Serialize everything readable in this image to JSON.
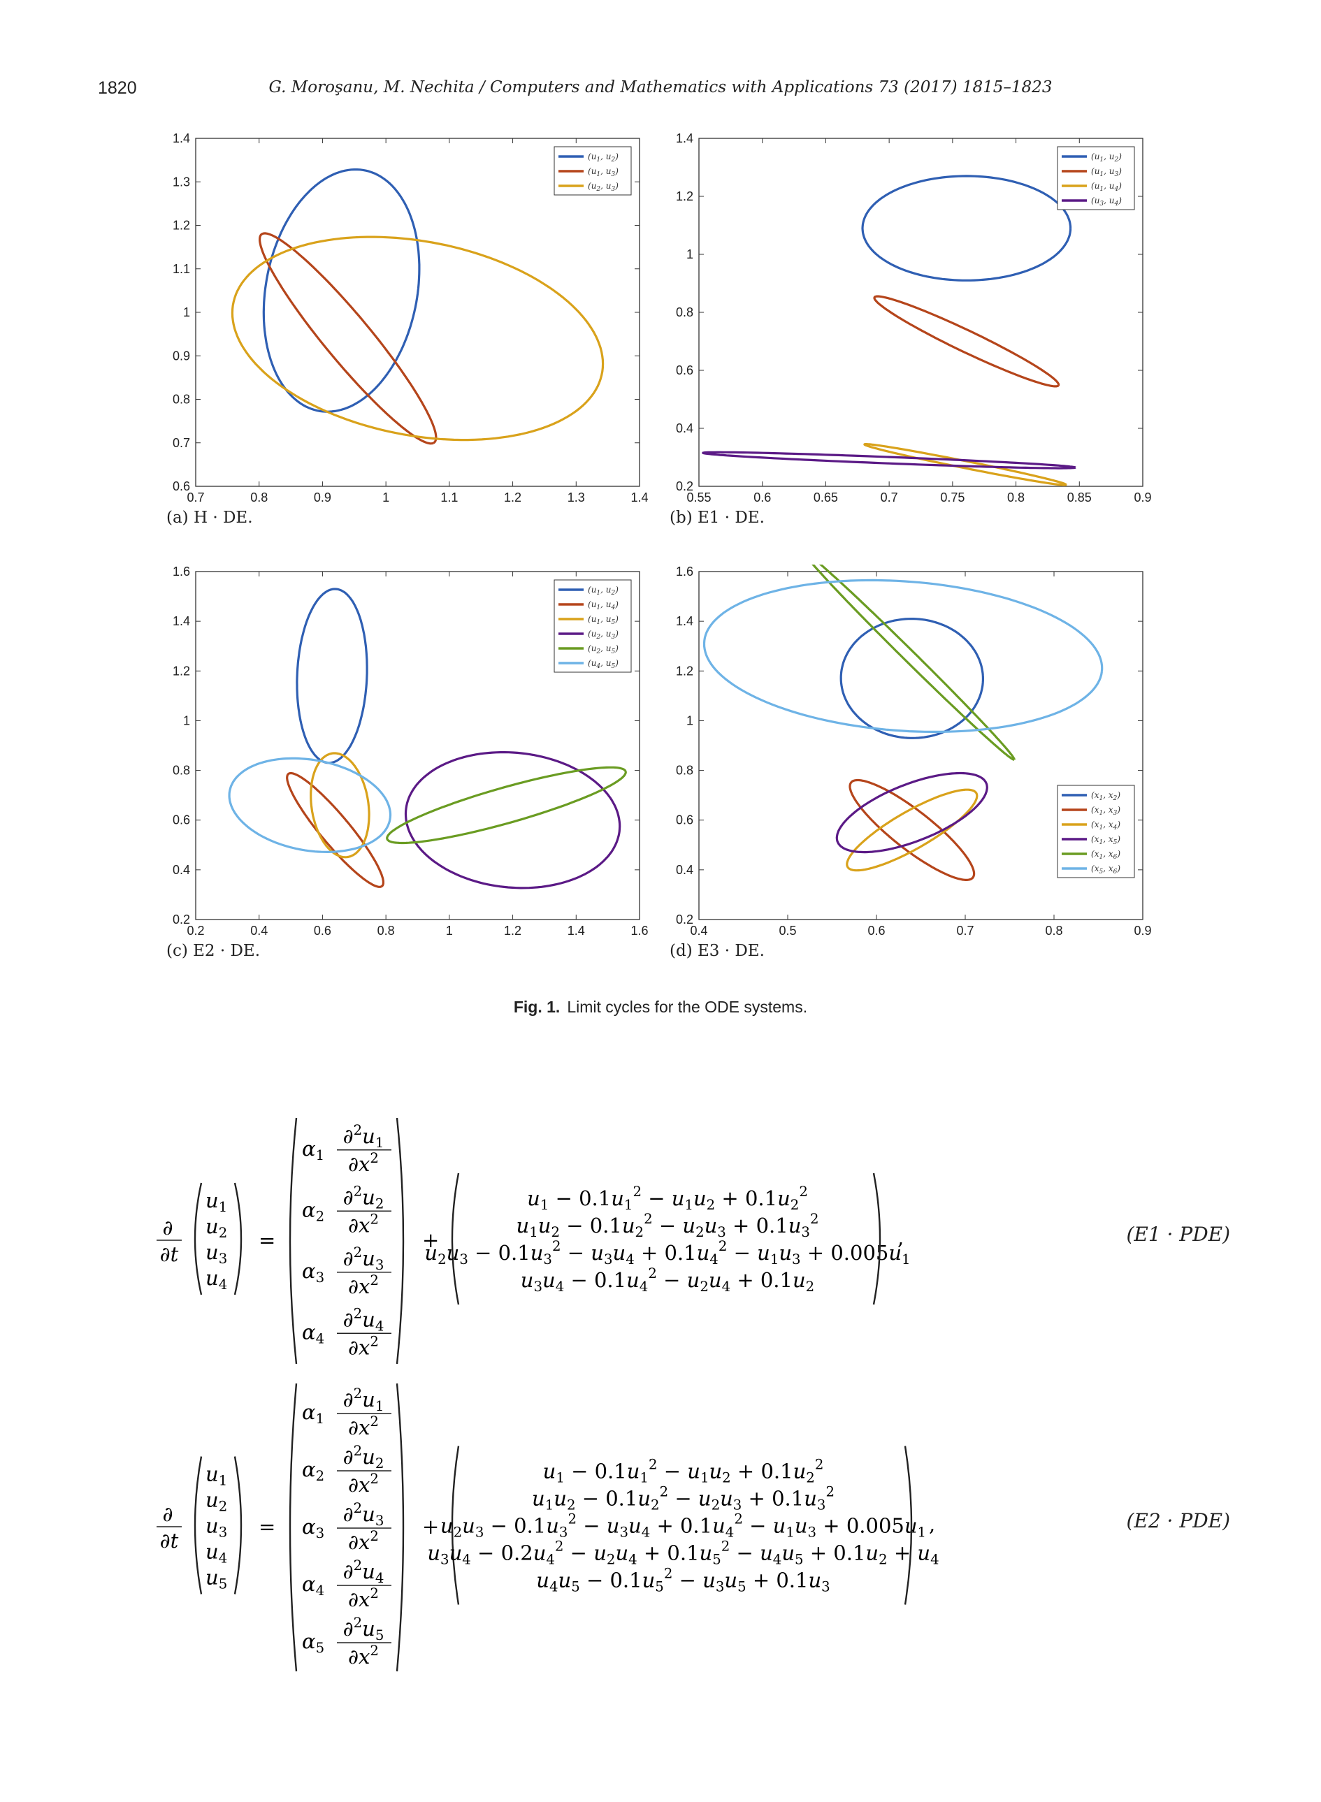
{
  "page": {
    "number": "1820",
    "running_head": "G. Moroşanu, M. Nechita / Computers and Mathematics with Applications 73 (2017) 1815–1823"
  },
  "colors": {
    "blue": "#2f5fb3",
    "red": "#b5451b",
    "yellow": "#d9a21b",
    "purple": "#5b1a86",
    "green": "#6a9c22",
    "lightblue": "#6eb3e6"
  },
  "figure": {
    "label": "Fig. 1.",
    "caption": "Limit cycles for the ODE systems."
  },
  "chart_data": [
    {
      "id": "a",
      "type": "line",
      "caption": "(a) H · DE.",
      "xlim": [
        0.7,
        1.4
      ],
      "ylim": [
        0.6,
        1.4
      ],
      "xticks": [
        "0.7",
        "0.8",
        "0.9",
        "1",
        "1.1",
        "1.2",
        "1.3",
        "1.4"
      ],
      "yticks": [
        "0.6",
        "0.7",
        "0.8",
        "0.9",
        "1",
        "1.1",
        "1.2",
        "1.3",
        "1.4"
      ],
      "legend_position": "top-right",
      "series": [
        {
          "name": "(u1, u2)",
          "color": "blue",
          "cx": 0.93,
          "cy": 1.05,
          "rx": 0.12,
          "ry": 0.28,
          "rot": -0.12
        },
        {
          "name": "(u1, u3)",
          "color": "red",
          "cx": 0.94,
          "cy": 0.94,
          "rx": 0.25,
          "ry": 0.045,
          "rot": -1.0
        },
        {
          "name": "(u2, u3)",
          "color": "yellow",
          "cx": 1.05,
          "cy": 0.94,
          "rx": 0.3,
          "ry": 0.22,
          "rot": -0.3
        }
      ]
    },
    {
      "id": "b",
      "type": "line",
      "caption": "(b) E1 · DE.",
      "xlim": [
        0.55,
        0.9
      ],
      "ylim": [
        0.2,
        1.4
      ],
      "xticks": [
        "0.55",
        "0.6",
        "0.65",
        "0.7",
        "0.75",
        "0.8",
        "0.85",
        "0.9"
      ],
      "yticks": [
        "0.2",
        "0.4",
        "0.6",
        "0.8",
        "1",
        "1.2",
        "1.4"
      ],
      "legend_position": "top-right",
      "series": [
        {
          "name": "(u1, u2)",
          "color": "blue",
          "cx": 0.761,
          "cy": 1.09,
          "rx": 0.082,
          "ry": 0.18,
          "rot": 0.0
        },
        {
          "name": "(u1, u3)",
          "color": "red",
          "cx": 0.761,
          "cy": 0.7,
          "rx": 0.085,
          "ry": 0.035,
          "rot": -0.55
        },
        {
          "name": "(u1, u4)",
          "color": "yellow",
          "cx": 0.76,
          "cy": 0.275,
          "rx": 0.082,
          "ry": 0.012,
          "rot": -0.25
        },
        {
          "name": "(u3, u4)",
          "color": "purple",
          "cx": 0.7,
          "cy": 0.29,
          "rx": 0.147,
          "ry": 0.011,
          "rot": -0.05
        }
      ]
    },
    {
      "id": "c",
      "type": "line",
      "caption": "(c) E2 · DE.",
      "xlim": [
        0.2,
        1.6
      ],
      "ylim": [
        0.2,
        1.6
      ],
      "xticks": [
        "0.2",
        "0.4",
        "0.6",
        "0.8",
        "1",
        "1.2",
        "1.4",
        "1.6"
      ],
      "yticks": [
        "0.2",
        "0.4",
        "0.6",
        "0.8",
        "1",
        "1.2",
        "1.4",
        "1.6"
      ],
      "legend_position": "top-right",
      "series": [
        {
          "name": "(u1, u2)",
          "color": "blue",
          "cx": 0.63,
          "cy": 1.18,
          "rx": 0.11,
          "ry": 0.35,
          "rot": -0.03
        },
        {
          "name": "(u1, u4)",
          "color": "red",
          "cx": 0.64,
          "cy": 0.56,
          "rx": 0.27,
          "ry": 0.05,
          "rot": -1.0
        },
        {
          "name": "(u1, u5)",
          "color": "yellow",
          "cx": 0.655,
          "cy": 0.66,
          "rx": 0.09,
          "ry": 0.21,
          "rot": 0.1
        },
        {
          "name": "(u2, u3)",
          "color": "purple",
          "cx": 1.2,
          "cy": 0.6,
          "rx": 0.34,
          "ry": 0.27,
          "rot": -0.2
        },
        {
          "name": "(u2, u5)",
          "color": "green",
          "cx": 1.18,
          "cy": 0.66,
          "rx": 0.4,
          "ry": 0.07,
          "rot": 0.35
        },
        {
          "name": "(u4, u5)",
          "color": "lightblue",
          "cx": 0.56,
          "cy": 0.66,
          "rx": 0.26,
          "ry": 0.18,
          "rot": -0.3
        }
      ]
    },
    {
      "id": "d",
      "type": "line",
      "caption": "(d) E3 · DE.",
      "xlim": [
        0.4,
        0.9
      ],
      "ylim": [
        0.2,
        1.6
      ],
      "xticks": [
        "0.4",
        "0.5",
        "0.6",
        "0.7",
        "0.8",
        "0.9"
      ],
      "yticks": [
        "0.2",
        "0.4",
        "0.6",
        "0.8",
        "1",
        "1.2",
        "1.4",
        "1.6"
      ],
      "legend_position": "bottom-right",
      "series": [
        {
          "name": "(x1, x2)",
          "color": "blue",
          "cx": 0.64,
          "cy": 1.17,
          "rx": 0.08,
          "ry": 0.24,
          "rot": 0.05
        },
        {
          "name": "(x1, x3)",
          "color": "red",
          "cx": 0.64,
          "cy": 0.56,
          "rx": 0.097,
          "ry": 0.07,
          "rot": -0.8
        },
        {
          "name": "(x1, x4)",
          "color": "yellow",
          "cx": 0.64,
          "cy": 0.56,
          "rx": 0.09,
          "ry": 0.07,
          "rot": 0.65
        },
        {
          "name": "(x1, x5)",
          "color": "purple",
          "cx": 0.64,
          "cy": 0.63,
          "rx": 0.094,
          "ry": 0.11,
          "rot": 0.5
        },
        {
          "name": "(x1, x6)",
          "color": "green",
          "cx": 0.637,
          "cy": 1.26,
          "rx": 0.19,
          "ry": 0.02,
          "rot": -0.9
        },
        {
          "name": "(x5, x6)",
          "color": "lightblue",
          "cx": 0.63,
          "cy": 1.26,
          "rx": 0.225,
          "ry": 0.3,
          "rot": -0.1
        }
      ]
    }
  ],
  "equations": [
    {
      "tag": "(E1 · PDE)",
      "lhs_vars": [
        "u1",
        "u2",
        "u3",
        "u4"
      ],
      "alphas": [
        "α1",
        "α2",
        "α3",
        "α4"
      ],
      "rhs_rows": [
        "u1 − 0.1u1² − u1u2 + 0.1u2²",
        "u1u2 − 0.1u2² − u2u3 + 0.1u3²",
        "u2u3 − 0.1u3² − u3u4 + 0.1u4² − u1u3 + 0.005u1",
        "u3u4 − 0.1u4² − u2u4 + 0.1u2"
      ]
    },
    {
      "tag": "(E2 · PDE)",
      "lhs_vars": [
        "u1",
        "u2",
        "u3",
        "u4",
        "u5"
      ],
      "alphas": [
        "α1",
        "α2",
        "α3",
        "α4",
        "α5"
      ],
      "rhs_rows": [
        "u1 − 0.1u1² − u1u2 + 0.1u2²",
        "u1u2 − 0.1u2² − u2u3 + 0.1u3²",
        "u2u3 − 0.1u3² − u3u4 + 0.1u4² − u1u3 + 0.005u1",
        "u3u4 − 0.2u4² − u2u4 + 0.1u5² − u4u5 + 0.1u2 + u4",
        "u4u5 − 0.1u5² − u3u5 + 0.1u3"
      ]
    }
  ]
}
